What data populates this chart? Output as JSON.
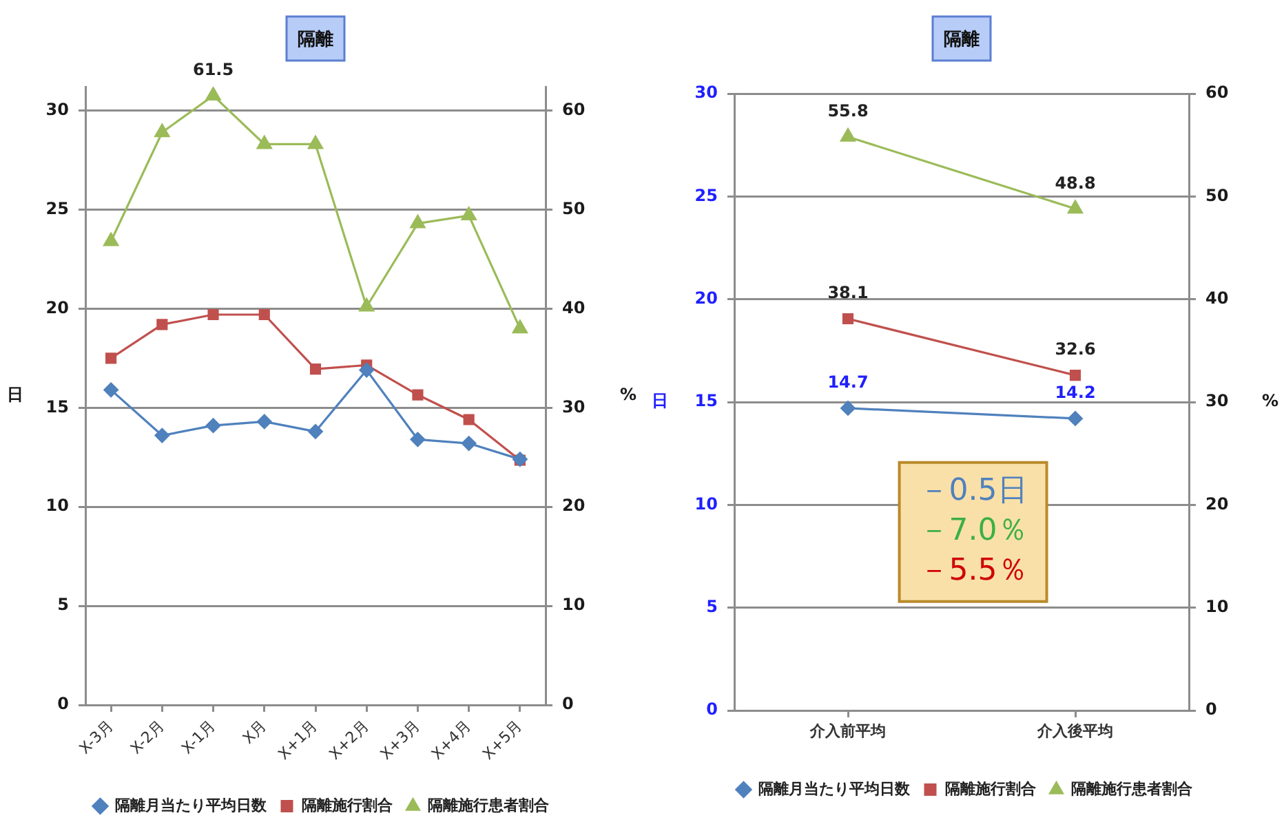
{
  "chart_data": [
    {
      "type": "line",
      "title": "隔離",
      "categories": [
        "X-3月",
        "X-2月",
        "X-1月",
        "X月",
        "X+1月",
        "X+2月",
        "X+3月",
        "X+4月",
        "X+5月"
      ],
      "series": [
        {
          "name": "隔離月当たり平均日数",
          "color": "#4f81bd",
          "marker": "diamond",
          "values": [
            15.9,
            13.6,
            14.1,
            14.3,
            13.8,
            16.9,
            13.4,
            13.2,
            12.4
          ]
        },
        {
          "name": "隔離施行割合",
          "color": "#c0504d",
          "marker": "square",
          "axis": "y2",
          "values": [
            35.0,
            38.4,
            39.4,
            39.4,
            33.9,
            34.3,
            31.3,
            28.8,
            24.7
          ]
        },
        {
          "name": "隔離施行患者割合",
          "color": "#9bbb59",
          "marker": "triangle",
          "axis": "y2",
          "values": [
            46.8,
            57.8,
            61.5,
            56.6,
            56.6,
            40.2,
            48.6,
            49.4,
            38.0
          ],
          "value_labels": [
            null,
            null,
            "61.5",
            null,
            null,
            null,
            null,
            null,
            null
          ]
        }
      ],
      "ylabel": "日",
      "y2label": "%",
      "ylim": [
        0,
        31.2
      ],
      "yticks": [
        0,
        5,
        10,
        15,
        20,
        25,
        30
      ],
      "y2lim": [
        0,
        62.4
      ],
      "y2ticks": [
        0,
        10,
        20,
        30,
        40,
        50,
        60
      ],
      "grid": "y",
      "legend": "bottom"
    },
    {
      "type": "line",
      "title": "隔離",
      "categories": [
        "介入前平均",
        "介入後平均"
      ],
      "series": [
        {
          "name": "隔離月当たり平均日数",
          "color": "#4f81bd",
          "marker": "diamond",
          "values": [
            14.7,
            14.2
          ]
        },
        {
          "name": "隔離施行割合",
          "color": "#c0504d",
          "marker": "square",
          "axis": "y2",
          "values": [
            38.1,
            32.6
          ]
        },
        {
          "name": "隔離施行患者割合",
          "color": "#9bbb59",
          "marker": "triangle",
          "axis": "y2",
          "values": [
            55.8,
            48.8
          ]
        }
      ],
      "ylabel": "日",
      "y2label": "%",
      "ylim": [
        0,
        30
      ],
      "yticks": [
        0,
        5,
        10,
        15,
        20,
        25,
        30
      ],
      "y2lim": [
        0,
        60
      ],
      "y2ticks": [
        0,
        10,
        20,
        30,
        40,
        50,
        60
      ],
      "grid": "y",
      "legend": "bottom",
      "data_labels": true,
      "annotations": [
        "－0.5日",
        "－7.0％",
        "－5.5％"
      ]
    }
  ]
}
